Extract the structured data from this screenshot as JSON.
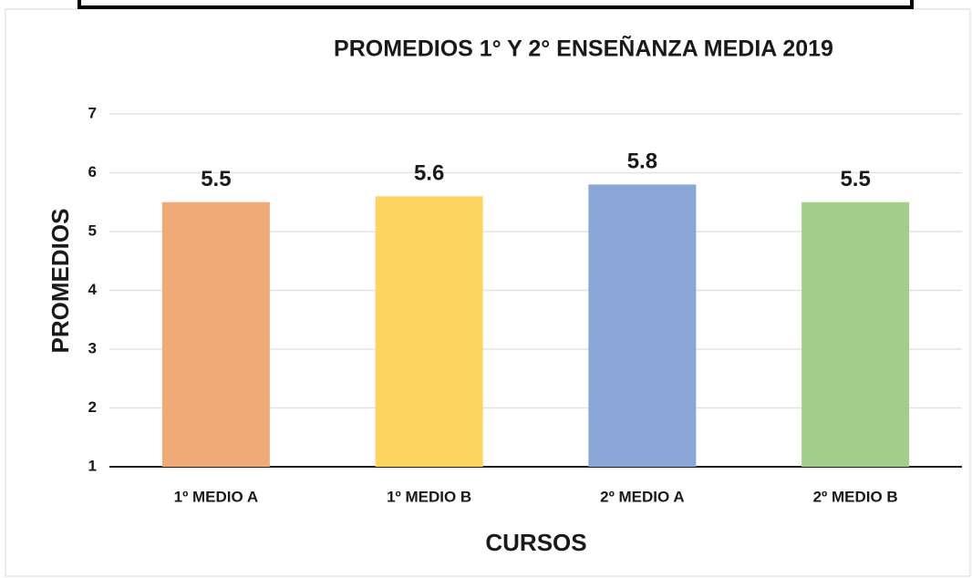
{
  "chart_data": {
    "type": "bar",
    "title": "PROMEDIOS 1° Y 2° ENSEÑANZA MEDIA 2019",
    "x_label": "CURSOS",
    "y_label": "PROMEDIOS",
    "categories": [
      "1º MEDIO A",
      "1º MEDIO B",
      "2º MEDIO A",
      "2º MEDIO B"
    ],
    "values": [
      5.5,
      5.6,
      5.8,
      5.5
    ],
    "colors": [
      "#f0aa78",
      "#fcd462",
      "#8aa6d6",
      "#a3cd8a"
    ],
    "ylim": [
      1,
      7
    ],
    "yticks": [
      1,
      2,
      3,
      4,
      5,
      6,
      7
    ],
    "grid": true
  }
}
